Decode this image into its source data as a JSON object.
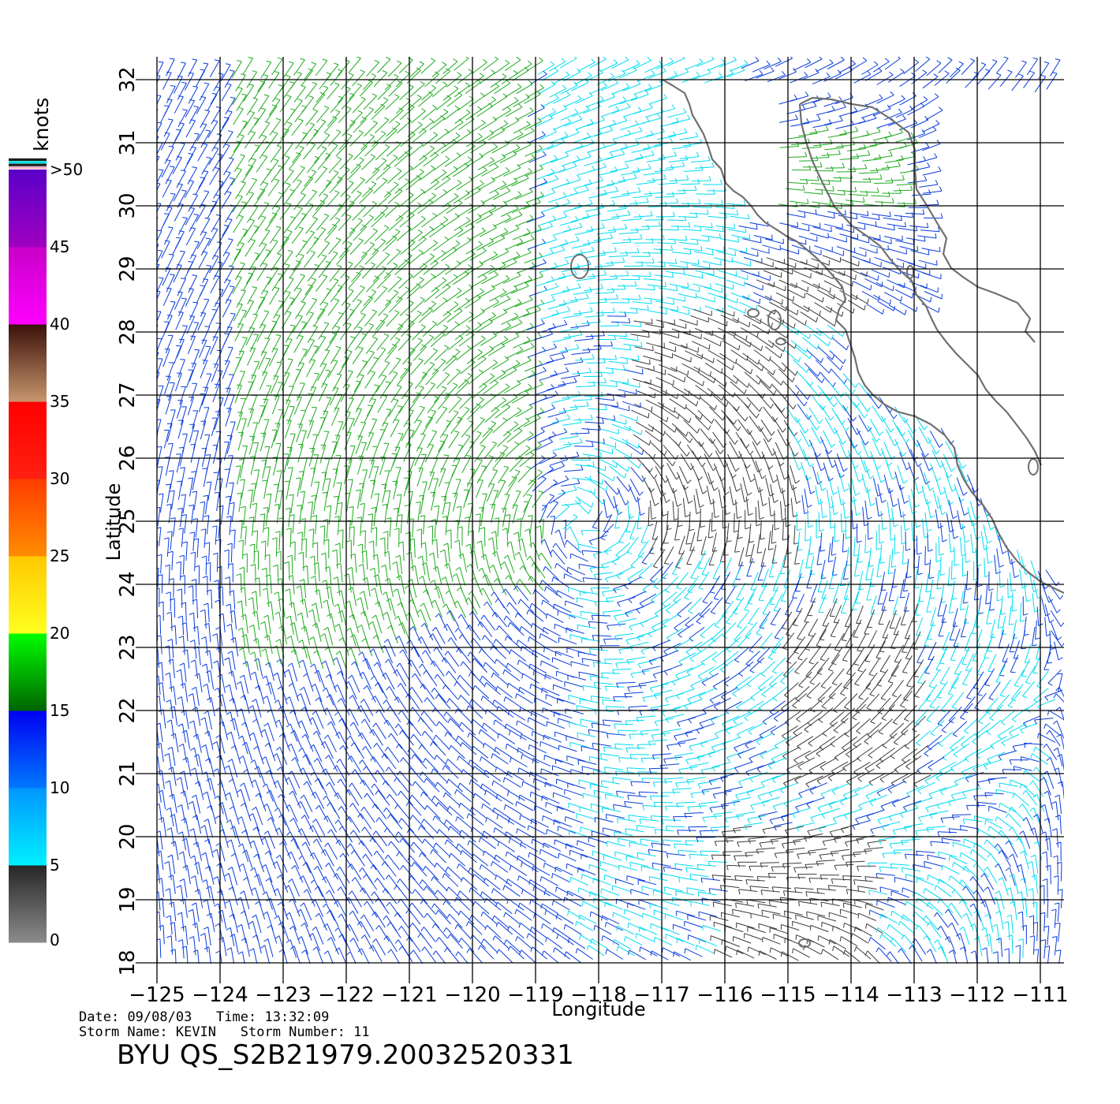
{
  "colorbar": {
    "unit_label": "knots",
    "segments": [
      {
        "from": 0,
        "to": 5,
        "c1": "#8c8c8c",
        "c2": "#262626"
      },
      {
        "from": 5,
        "to": 10,
        "c1": "#00f0ff",
        "c2": "#0096ff"
      },
      {
        "from": 10,
        "to": 15,
        "c1": "#0078ff",
        "c2": "#0000f0"
      },
      {
        "from": 15,
        "to": 20,
        "c1": "#006400",
        "c2": "#00ff00"
      },
      {
        "from": 20,
        "to": 25,
        "c1": "#ffff20",
        "c2": "#ffc800"
      },
      {
        "from": 25,
        "to": 30,
        "c1": "#ff8c00",
        "c2": "#ff3c00"
      },
      {
        "from": 30,
        "to": 35,
        "c1": "#ff2010",
        "c2": "#ff0000"
      },
      {
        "from": 35,
        "to": 40,
        "c1": "#c8966e",
        "c2": "#3a1008"
      },
      {
        "from": 40,
        "to": 45,
        "c1": "#ff00ff",
        "c2": "#c800c8"
      },
      {
        "from": 45,
        "to": 50,
        "c1": "#a000c0",
        "c2": "#5a00c8"
      }
    ],
    "tick_labels": [
      "0",
      "5",
      "10",
      "15",
      "20",
      "25",
      "30",
      "35",
      "40",
      "45",
      ">50"
    ],
    "top_stripe_colors": [
      "#ffb4c8",
      "#1e1e1e",
      "#00dcdc",
      "#1e1e1e"
    ]
  },
  "axes": {
    "xlabel": "Longitude",
    "ylabel": "Latitude",
    "xlim": [
      -125,
      -111
    ],
    "ylim": [
      18,
      32
    ],
    "x_ticks": [
      "−125",
      "−124",
      "−123",
      "−122",
      "−121",
      "−120",
      "−119",
      "−118",
      "−117",
      "−116",
      "−115",
      "−114",
      "−113",
      "−112",
      "−111"
    ],
    "y_ticks": [
      "18",
      "19",
      "20",
      "21",
      "22",
      "23",
      "24",
      "25",
      "26",
      "27",
      "28",
      "29",
      "30",
      "31",
      "32"
    ],
    "grid": true
  },
  "wind_colors": {
    "calm": "#3c3c3c",
    "light": "#00dcf0",
    "moderate": "#0a3cdc",
    "strong": "#1eaa1e"
  },
  "land_color": "#707070",
  "footer": {
    "date_label": "Date:",
    "date_value": "09/08/03",
    "time_label": "Time:",
    "time_value": "13:32:09",
    "storm_name_label": "Storm Name:",
    "storm_name_value": "KEVIN",
    "storm_number_label": "Storm Number:",
    "storm_number_value": "11",
    "product": "BYU QS_S2B21979.20032520331"
  },
  "chart_data": {
    "type": "wind-vector-map",
    "xlabel": "Longitude",
    "ylabel": "Latitude",
    "xlim": [
      -125,
      -111
    ],
    "ylim": [
      18,
      32
    ],
    "colorbar_unit": "knots",
    "colorbar_range": [
      0,
      50
    ],
    "storm": {
      "name": "KEVIN",
      "number": "11"
    },
    "circulation_center": {
      "lon": -117.8,
      "lat": 25.1
    }
  }
}
